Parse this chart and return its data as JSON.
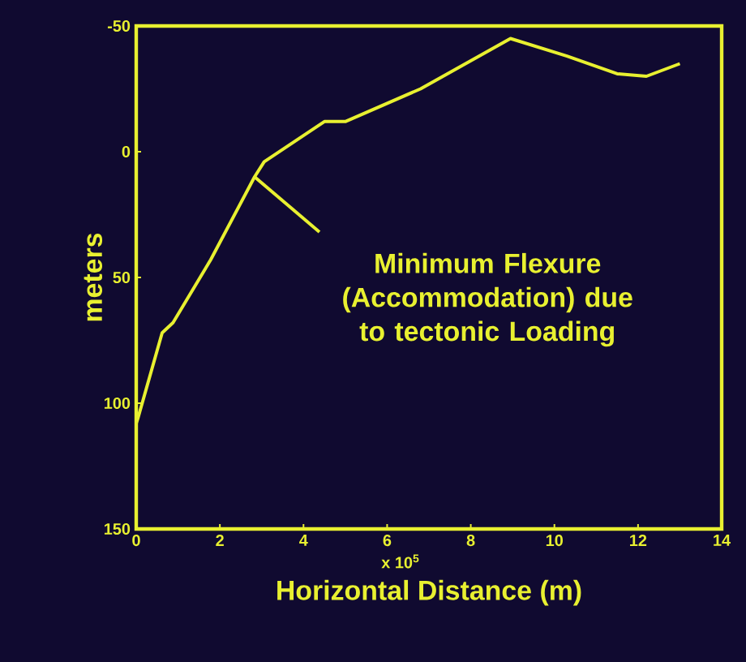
{
  "chart_data": {
    "type": "line",
    "xlabel": "Horizontal Distance (m)",
    "ylabel": "meters",
    "x": [
      0,
      0.04,
      0.62,
      0.88,
      1.78,
      2.83,
      3.06,
      4.5,
      5.0,
      6.8,
      8.95,
      10.3,
      11.5,
      12.2,
      13.0
    ],
    "series": [
      {
        "color": "#e8f030",
        "values": [
          108,
          106,
          72,
          68,
          43,
          10,
          4,
          -12,
          -12,
          -25,
          -45,
          -38,
          -31,
          -30,
          -35
        ]
      }
    ],
    "xlim": [
      0,
      14
    ],
    "xticks": [
      0,
      2,
      4,
      6,
      8,
      10,
      12,
      14
    ],
    "ylim": [
      150,
      -50
    ],
    "yticks": [
      -50,
      0,
      50,
      100,
      150
    ],
    "marker": "none",
    "line_style": "solid",
    "grid": false,
    "annotations": [
      {
        "text": "Minimum Flexure (Accommodation) due to tectonic Loading",
        "x": 2.83,
        "y": 10
      },
      "x 10$^{5}$"
    ]
  }
}
